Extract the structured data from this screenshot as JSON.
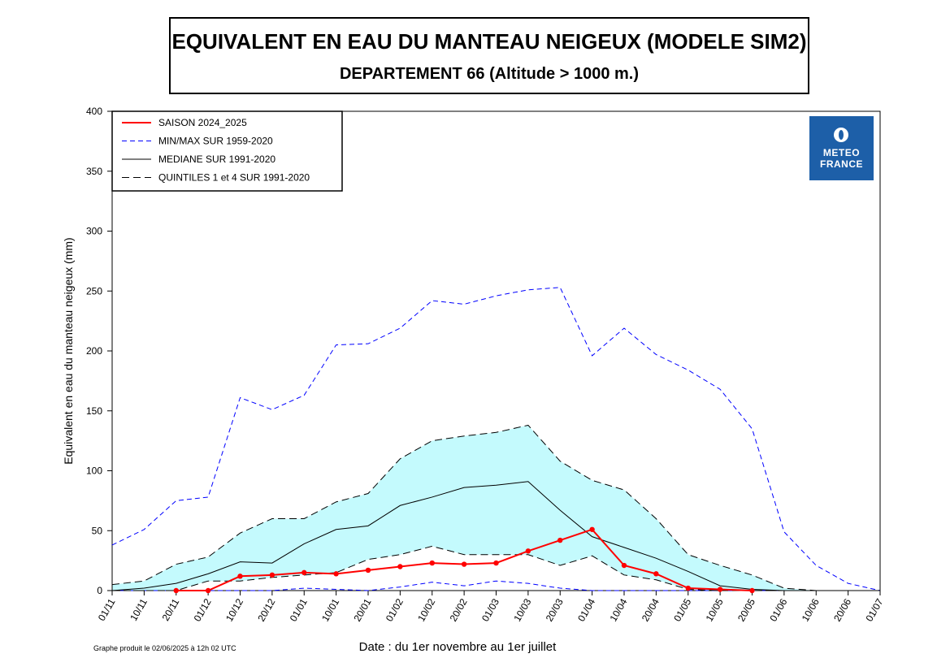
{
  "title": "EQUIVALENT EN EAU DU MANTEAU NEIGEUX (MODELE SIM2)",
  "subtitle": "DEPARTEMENT 66  (Altitude > 1000 m.)",
  "footer_note": "Graphe produit le 02/06/2025 à 12h 02 UTC",
  "logo": {
    "line1": "METEO",
    "line2": "FRANCE",
    "color": "#1d5fa8",
    "icon": "meteo-france-logo-icon"
  },
  "chart_data": {
    "type": "line",
    "xlabel": "Date : du 1er novembre au 1er juillet",
    "ylabel": "Equivalent en eau du manteau neigeux (mm)",
    "ylim": [
      0,
      400
    ],
    "yticks": [
      0,
      50,
      100,
      150,
      200,
      250,
      300,
      350,
      400
    ],
    "categories": [
      "01/11",
      "10/11",
      "20/11",
      "01/12",
      "10/12",
      "20/12",
      "01/01",
      "10/01",
      "20/01",
      "01/02",
      "10/02",
      "20/02",
      "01/03",
      "10/03",
      "20/03",
      "01/04",
      "10/04",
      "20/04",
      "01/05",
      "10/05",
      "20/05",
      "01/06",
      "10/06",
      "20/06",
      "01/07"
    ],
    "legend_position": "top-left",
    "grid": false,
    "series": [
      {
        "name": "SAISON 2024_2025",
        "style": "solid-markers",
        "color": "#ff0000",
        "values": [
          null,
          null,
          0,
          0,
          12,
          13,
          15,
          14,
          17,
          20,
          23,
          22,
          23,
          33,
          42,
          51,
          21,
          14,
          2,
          1,
          0,
          null,
          null,
          null,
          null
        ]
      },
      {
        "name": "MIN/MAX SUR 1959-2020",
        "style": "dashed",
        "color": "#0000ff",
        "role": "max",
        "values": [
          38,
          51,
          75,
          78,
          161,
          151,
          163,
          205,
          206,
          219,
          242,
          239,
          246,
          251,
          253,
          196,
          219,
          197,
          184,
          168,
          135,
          49,
          21,
          6,
          0
        ]
      },
      {
        "name": "MIN/MAX SUR 1959-2020",
        "style": "dashed",
        "color": "#0000ff",
        "role": "min",
        "values": [
          0,
          0,
          0,
          0,
          0,
          0,
          2,
          1,
          0,
          3,
          7,
          4,
          8,
          6,
          2,
          0,
          0,
          0,
          0,
          0,
          0,
          0,
          0,
          0,
          0
        ]
      },
      {
        "name": "MEDIANE SUR 1991-2020",
        "style": "solid",
        "color": "#000000",
        "values": [
          0,
          2,
          6,
          14,
          24,
          23,
          39,
          51,
          54,
          71,
          78,
          86,
          88,
          91,
          67,
          45,
          36,
          27,
          16,
          4,
          1,
          0,
          0,
          0,
          0
        ]
      },
      {
        "name": "QUINTILES 1 et 4 SUR 1991-2020",
        "style": "dashed",
        "color": "#000000",
        "role": "q4",
        "values": [
          5,
          8,
          22,
          28,
          48,
          60,
          60,
          74,
          81,
          110,
          125,
          129,
          132,
          138,
          108,
          92,
          84,
          60,
          30,
          21,
          13,
          2,
          0,
          0,
          0
        ]
      },
      {
        "name": "QUINTILES 1 et 4 SUR 1991-2020",
        "style": "dashed",
        "color": "#000000",
        "role": "q1",
        "values": [
          0,
          0,
          0,
          8,
          8,
          11,
          13,
          15,
          26,
          30,
          37,
          30,
          30,
          30,
          21,
          29,
          13,
          9,
          1,
          0,
          0,
          0,
          0,
          0,
          0
        ]
      }
    ],
    "band_fill_color": "#c4fafd",
    "legend": [
      {
        "label": "SAISON 2024_2025",
        "style": "solid",
        "color": "#ff0000"
      },
      {
        "label": "MIN/MAX SUR 1959-2020",
        "style": "dashed",
        "color": "#0000ff"
      },
      {
        "label": "MEDIANE SUR 1991-2020",
        "style": "solid",
        "color": "#000000"
      },
      {
        "label": "QUINTILES 1 et 4 SUR 1991-2020",
        "style": "dashed",
        "color": "#000000"
      }
    ]
  }
}
